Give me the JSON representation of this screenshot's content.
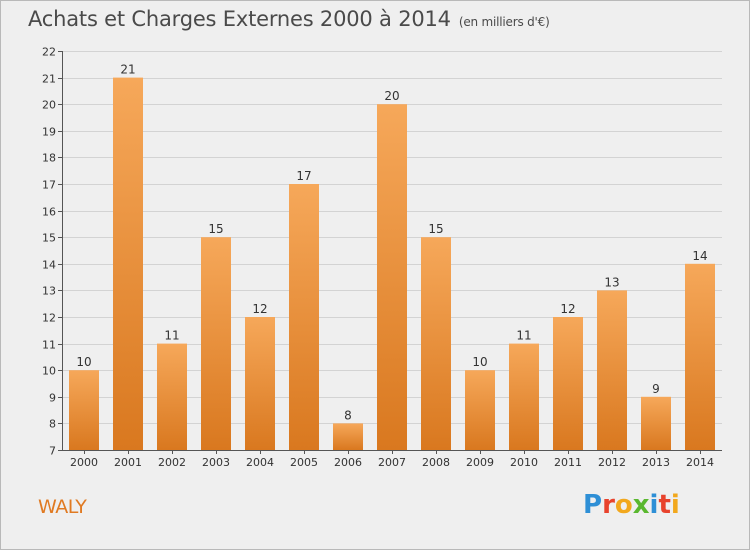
{
  "header": {
    "title": "Achats et Charges Externes 2000 à 2014",
    "subtitle": "(en milliers d'€)"
  },
  "footer": {
    "place": "WALY",
    "brand_letters": [
      "P",
      "r",
      "o",
      "x",
      "i",
      "t",
      "i"
    ],
    "brand_colors": [
      "#2e8fd6",
      "#e8432d",
      "#f2a81d",
      "#5ab82f",
      "#2e8fd6",
      "#e8432d",
      "#f2a81d"
    ]
  },
  "colors": {
    "bar_top": "#f6a85a",
    "bar_bottom": "#d9781f",
    "axis": "#555555",
    "grid": "#d3d3d3",
    "text": "#333333"
  },
  "chart_data": {
    "type": "bar",
    "categories": [
      "2000",
      "2001",
      "2002",
      "2003",
      "2004",
      "2005",
      "2006",
      "2007",
      "2008",
      "2009",
      "2010",
      "2011",
      "2012",
      "2013",
      "2014"
    ],
    "values": [
      10,
      21,
      11,
      15,
      12,
      17,
      8,
      20,
      15,
      10,
      11,
      12,
      13,
      9,
      14
    ],
    "title": "Achats et Charges Externes 2000 à 2014",
    "ylim": [
      7,
      22
    ],
    "yticks": [
      "7",
      "8",
      "9",
      "10",
      "11",
      "12",
      "13",
      "14",
      "15",
      "16",
      "17",
      "18",
      "19",
      "20",
      "21",
      "22"
    ],
    "grid": true,
    "data_labels": true
  }
}
